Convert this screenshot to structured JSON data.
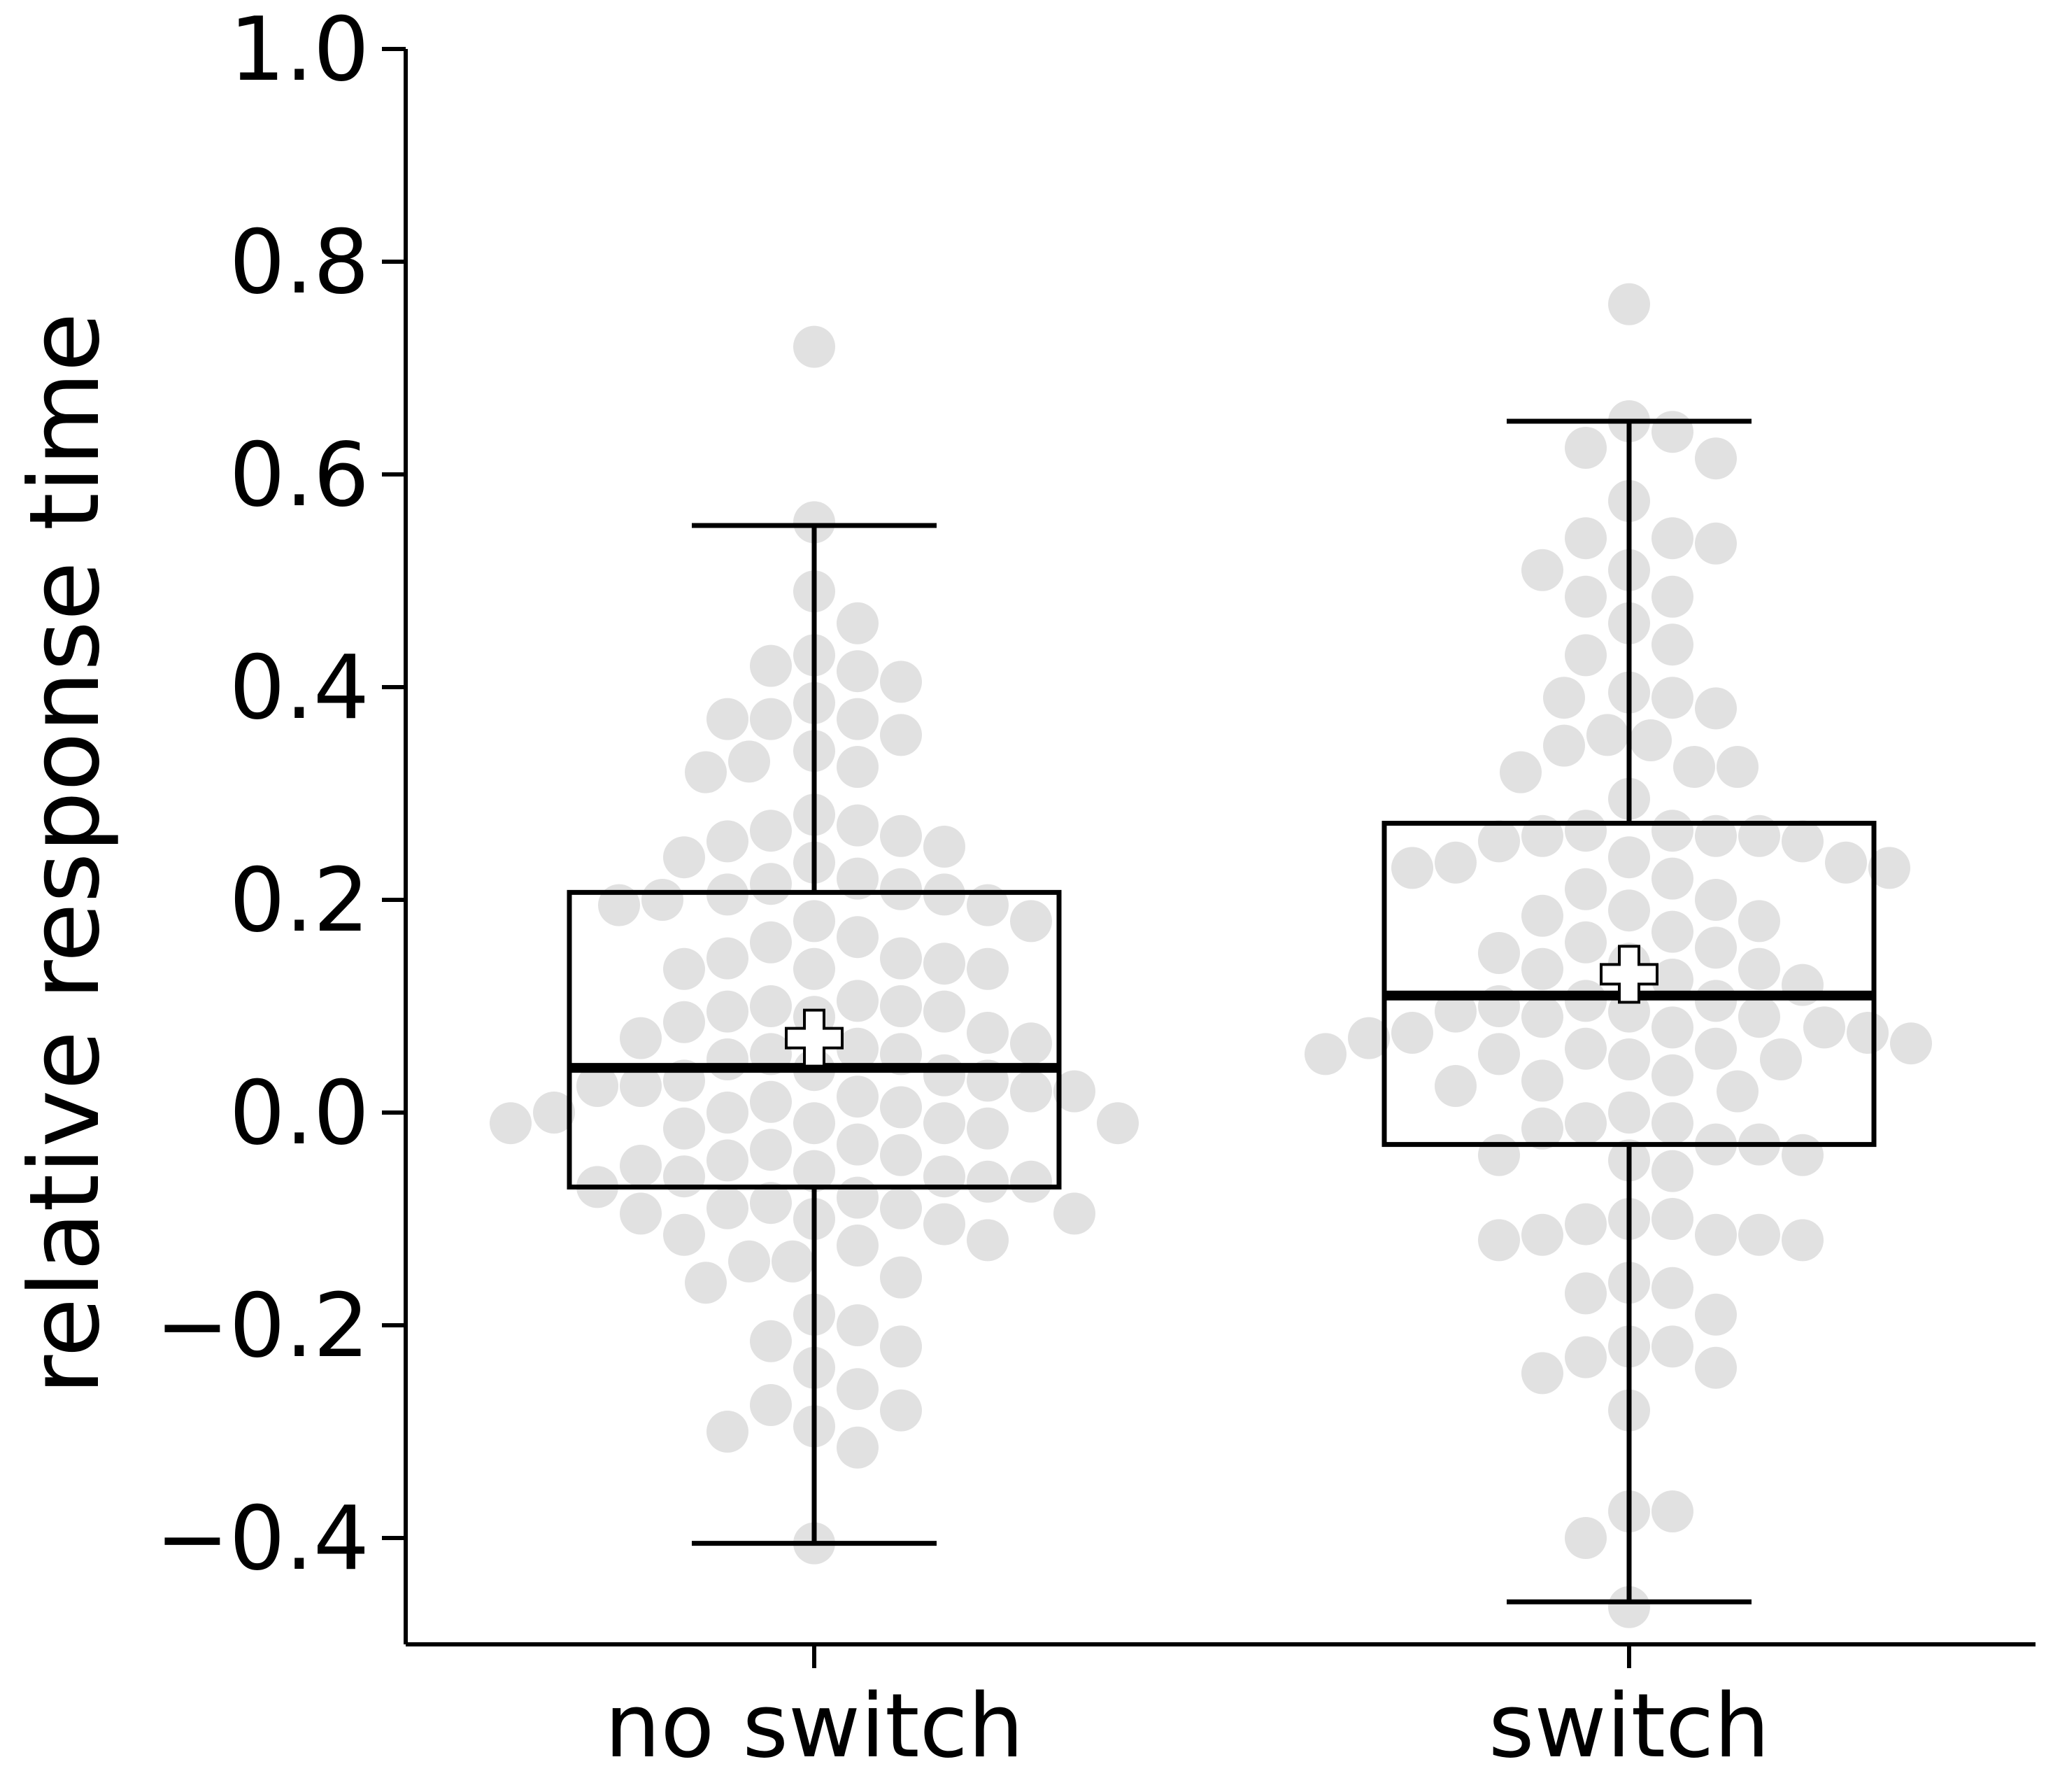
{
  "chart_data": {
    "type": "box",
    "ylabel": "relative response time",
    "xlabel": "",
    "ylim": [
      -0.5,
      1.0
    ],
    "yticks": [
      -0.4,
      -0.2,
      0.0,
      0.2,
      0.4,
      0.6,
      0.8,
      1.0
    ],
    "ytick_labels": [
      "−0.4",
      "−0.2",
      "0.0",
      "0.2",
      "0.4",
      "0.6",
      "0.8",
      "1.0"
    ],
    "categories": [
      "no switch",
      "switch"
    ],
    "grid": false,
    "colors": {
      "points": "#e1e1e1",
      "box": "#000000",
      "mean_marker_fill": "#ffffff"
    },
    "groups": [
      {
        "name": "no switch",
        "whisker_low": -0.405,
        "q1": -0.07,
        "median": 0.042,
        "q3": 0.207,
        "whisker_high": 0.552,
        "mean": 0.07,
        "points": [
          0.72,
          0.555,
          0.49,
          0.46,
          0.43,
          0.42,
          0.415,
          0.405,
          0.385,
          0.37,
          0.37,
          0.37,
          0.355,
          0.34,
          0.33,
          0.325,
          0.32,
          0.28,
          0.27,
          0.265,
          0.26,
          0.255,
          0.25,
          0.24,
          0.235,
          0.22,
          0.215,
          0.21,
          0.205,
          0.205,
          0.2,
          0.195,
          0.195,
          0.18,
          0.18,
          0.165,
          0.16,
          0.145,
          0.145,
          0.14,
          0.135,
          0.135,
          0.135,
          0.105,
          0.1,
          0.1,
          0.095,
          0.095,
          0.09,
          0.085,
          0.075,
          0.07,
          0.065,
          0.06,
          0.055,
          0.055,
          0.05,
          0.04,
          0.035,
          0.03,
          0.03,
          0.025,
          0.025,
          0.02,
          0.02,
          0.015,
          0.01,
          0.005,
          0.0,
          0.0,
          -0.01,
          -0.01,
          -0.01,
          -0.01,
          -0.015,
          -0.015,
          -0.03,
          -0.035,
          -0.04,
          -0.045,
          -0.05,
          -0.055,
          -0.06,
          -0.06,
          -0.065,
          -0.065,
          -0.07,
          -0.08,
          -0.085,
          -0.09,
          -0.09,
          -0.095,
          -0.095,
          -0.1,
          -0.105,
          -0.115,
          -0.12,
          -0.125,
          -0.14,
          -0.14,
          -0.155,
          -0.16,
          -0.19,
          -0.2,
          -0.215,
          -0.22,
          -0.24,
          -0.26,
          -0.275,
          -0.28,
          -0.295,
          -0.3,
          -0.315,
          -0.405
        ]
      },
      {
        "name": "switch",
        "whisker_low": -0.46,
        "q1": -0.03,
        "median": 0.11,
        "q3": 0.272,
        "whisker_high": 0.65,
        "mean": 0.13,
        "points": [
          0.76,
          0.65,
          0.64,
          0.625,
          0.615,
          0.575,
          0.54,
          0.54,
          0.535,
          0.51,
          0.51,
          0.485,
          0.485,
          0.46,
          0.44,
          0.43,
          0.395,
          0.39,
          0.39,
          0.38,
          0.355,
          0.35,
          0.345,
          0.325,
          0.325,
          0.32,
          0.295,
          0.265,
          0.265,
          0.26,
          0.26,
          0.26,
          0.255,
          0.255,
          0.24,
          0.235,
          0.235,
          0.23,
          0.23,
          0.22,
          0.21,
          0.2,
          0.19,
          0.185,
          0.18,
          0.17,
          0.16,
          0.155,
          0.15,
          0.14,
          0.135,
          0.135,
          0.125,
          0.12,
          0.105,
          0.105,
          0.1,
          0.095,
          0.095,
          0.09,
          0.09,
          0.08,
          0.08,
          0.075,
          0.075,
          0.07,
          0.065,
          0.06,
          0.06,
          0.055,
          0.055,
          0.05,
          0.05,
          0.035,
          0.03,
          0.025,
          0.02,
          0.0,
          -0.01,
          -0.01,
          -0.015,
          -0.03,
          -0.03,
          -0.04,
          -0.04,
          -0.045,
          -0.055,
          -0.1,
          -0.1,
          -0.105,
          -0.115,
          -0.115,
          -0.115,
          -0.12,
          -0.12,
          -0.16,
          -0.165,
          -0.17,
          -0.19,
          -0.22,
          -0.22,
          -0.23,
          -0.24,
          -0.245,
          -0.28,
          -0.375,
          -0.375,
          -0.4,
          -0.465
        ]
      }
    ]
  }
}
